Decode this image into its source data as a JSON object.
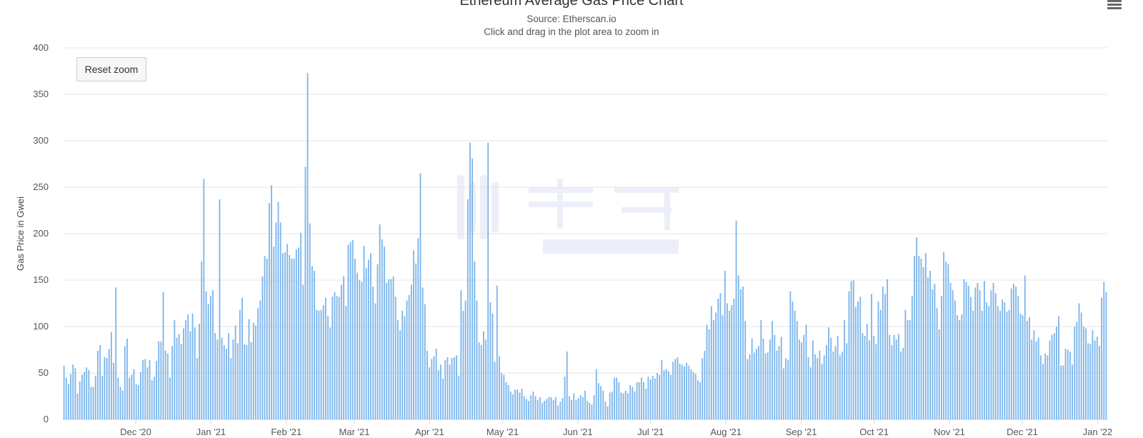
{
  "chart_data": {
    "type": "bar",
    "title": "Ethereum Average Gas Price Chart",
    "subtitle": "Source: Etherscan.io",
    "subtitle2": "Click and drag in the plot area to zoom in",
    "ylabel": "Gas Price in Gwei",
    "xlabel": "",
    "ylim": [
      0,
      400
    ],
    "yticks": [
      0,
      50,
      100,
      150,
      200,
      250,
      300,
      350,
      400
    ],
    "x_start": "2020-11-01",
    "x_end": "2022-01-05",
    "xtick_labels": [
      {
        "date": "2020-12-01",
        "label": "Dec '20"
      },
      {
        "date": "2021-01-01",
        "label": "Jan '21"
      },
      {
        "date": "2021-02-01",
        "label": "Feb '21"
      },
      {
        "date": "2021-03-01",
        "label": "Mar '21"
      },
      {
        "date": "2021-04-01",
        "label": "Apr '21"
      },
      {
        "date": "2021-05-01",
        "label": "May '21"
      },
      {
        "date": "2021-06-01",
        "label": "Jun '21"
      },
      {
        "date": "2021-07-01",
        "label": "Jul '21"
      },
      {
        "date": "2021-08-01",
        "label": "Aug '21"
      },
      {
        "date": "2021-09-01",
        "label": "Sep '21"
      },
      {
        "date": "2021-10-01",
        "label": "Oct '21"
      },
      {
        "date": "2021-11-01",
        "label": "Nov '21"
      },
      {
        "date": "2021-12-01",
        "label": "Dec '21"
      },
      {
        "date": "2022-01-01",
        "label": "Jan '22"
      }
    ],
    "grid": true,
    "legend": "none",
    "bar_color": "#7cb5ec",
    "series": [
      {
        "values": [
          58,
          45,
          38,
          49,
          59,
          55,
          28,
          41,
          48,
          51,
          56,
          53,
          35,
          35,
          47,
          74,
          80,
          47,
          67,
          66,
          76,
          94,
          61,
          142,
          45,
          35,
          31,
          79,
          87,
          45,
          48,
          54,
          38,
          37,
          51,
          64,
          65,
          56,
          64,
          42,
          46,
          63,
          84,
          84,
          137,
          74,
          71,
          45,
          79,
          107,
          88,
          92,
          81,
          98,
          107,
          113,
          95,
          114,
          99,
          66,
          103,
          170,
          259,
          138,
          124,
          133,
          139,
          93,
          86,
          237,
          88,
          80,
          76,
          93,
          66,
          86,
          101,
          82,
          118,
          131,
          81,
          80,
          108,
          83,
          104,
          101,
          120,
          128,
          154,
          176,
          173,
          233,
          252,
          186,
          212,
          234,
          212,
          179,
          180,
          189,
          177,
          173,
          173,
          183,
          185,
          201,
          145,
          272,
          373,
          211,
          165,
          160,
          118,
          117,
          118,
          123,
          131,
          111,
          99,
          132,
          137,
          133,
          132,
          145,
          154,
          122,
          188,
          191,
          193,
          173,
          158,
          150,
          148,
          187,
          163,
          172,
          179,
          143,
          125,
          167,
          210,
          194,
          186,
          147,
          151,
          151,
          154,
          132,
          107,
          96,
          117,
          111,
          128,
          134,
          145,
          182,
          168,
          195,
          265,
          142,
          124,
          74,
          56,
          65,
          68,
          76,
          53,
          59,
          44,
          64,
          67,
          59,
          66,
          67,
          69,
          47,
          139,
          117,
          128,
          237,
          298,
          281,
          170,
          128,
          83,
          80,
          95,
          86,
          298,
          126,
          114,
          62,
          144,
          68,
          50,
          48,
          40,
          37,
          30,
          27,
          32,
          32,
          29,
          33,
          25,
          22,
          20,
          26,
          30,
          25,
          21,
          24,
          18,
          20,
          22,
          24,
          24,
          21,
          24,
          15,
          19,
          23,
          46,
          73,
          25,
          21,
          28,
          21,
          23,
          26,
          24,
          31,
          20,
          18,
          16,
          26,
          54,
          39,
          36,
          31,
          19,
          14,
          29,
          30,
          45,
          45,
          40,
          29,
          28,
          31,
          28,
          37,
          35,
          30,
          40,
          40,
          45,
          40,
          33,
          46,
          43,
          47,
          44,
          50,
          48,
          64,
          53,
          54,
          52,
          48,
          62,
          65,
          67,
          60,
          59,
          57,
          61,
          58,
          54,
          51,
          49,
          42,
          40,
          66,
          74,
          102,
          97,
          122,
          107,
          115,
          130,
          136,
          112,
          160,
          125,
          117,
          123,
          130,
          214,
          155,
          140,
          143,
          106,
          65,
          70,
          87,
          72,
          76,
          79,
          107,
          87,
          71,
          72,
          86,
          106,
          91,
          74,
          79,
          89,
          55,
          66,
          64,
          138,
          127,
          117,
          106,
          86,
          83,
          91,
          102,
          67,
          56,
          85,
          70,
          66,
          74,
          60,
          69,
          80,
          99,
          88,
          73,
          79,
          90,
          69,
          73,
          107,
          82,
          138,
          149,
          150,
          121,
          127,
          132,
          93,
          90,
          103,
          85,
          135,
          90,
          81,
          127,
          118,
          143,
          135,
          151,
          91,
          80,
          91,
          86,
          92,
          73,
          77,
          118,
          107,
          107,
          133,
          176,
          196,
          176,
          173,
          164,
          179,
          153,
          160,
          140,
          146,
          120,
          97,
          133,
          180,
          170,
          167,
          147,
          139,
          128,
          112,
          107,
          113,
          151,
          148,
          144,
          132,
          117,
          142,
          147,
          139,
          117,
          149,
          126,
          122,
          139,
          147,
          136,
          122,
          117,
          129,
          126,
          116,
          118,
          141,
          146,
          143,
          133,
          114,
          112,
          155,
          106,
          110,
          86,
          96,
          84,
          88,
          69,
          60,
          71,
          69,
          85,
          91,
          93,
          100,
          111,
          58,
          58,
          76,
          75,
          73,
          59,
          100,
          105,
          125,
          115,
          100,
          98,
          82,
          81,
          96,
          85,
          89,
          79,
          131,
          148,
          137
        ]
      }
    ]
  }
}
